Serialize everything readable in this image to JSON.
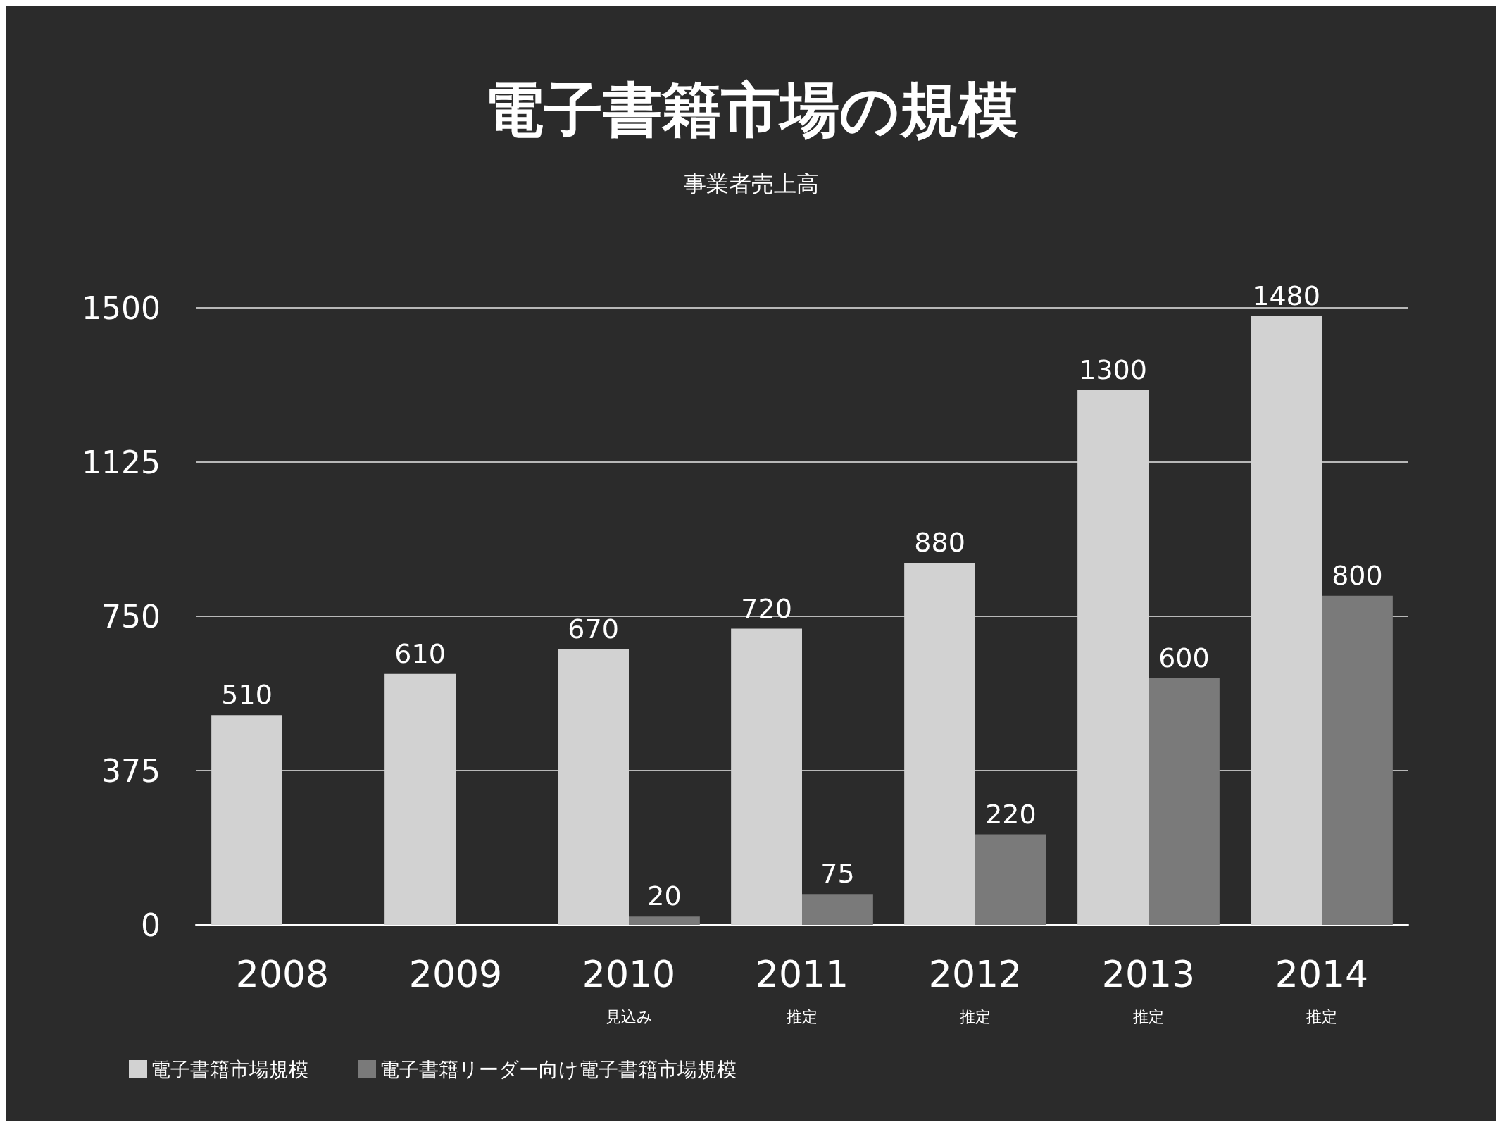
{
  "chart_data": {
    "type": "bar",
    "title": "電子書籍市場の規模",
    "subtitle": "事業者売上高",
    "categories": [
      "2008",
      "2009",
      "2010\n見込み",
      "2011\n推定",
      "2012\n推定",
      "2013\n推定",
      "2014\n推定"
    ],
    "series": [
      {
        "name": "電子書籍市場規模",
        "color": "#d2d2d2",
        "values": [
          510,
          610,
          670,
          720,
          880,
          1300,
          1480
        ]
      },
      {
        "name": "電子書籍リーダー向け電子書籍市場規模",
        "color": "#7a7a7a",
        "values": [
          null,
          null,
          20,
          75,
          220,
          600,
          800
        ]
      }
    ],
    "ylim": [
      0,
      1500
    ],
    "yticks": [
      0,
      375,
      750,
      1125,
      1500
    ],
    "grid": "y",
    "legend": "bottom left",
    "data_labels": true
  }
}
